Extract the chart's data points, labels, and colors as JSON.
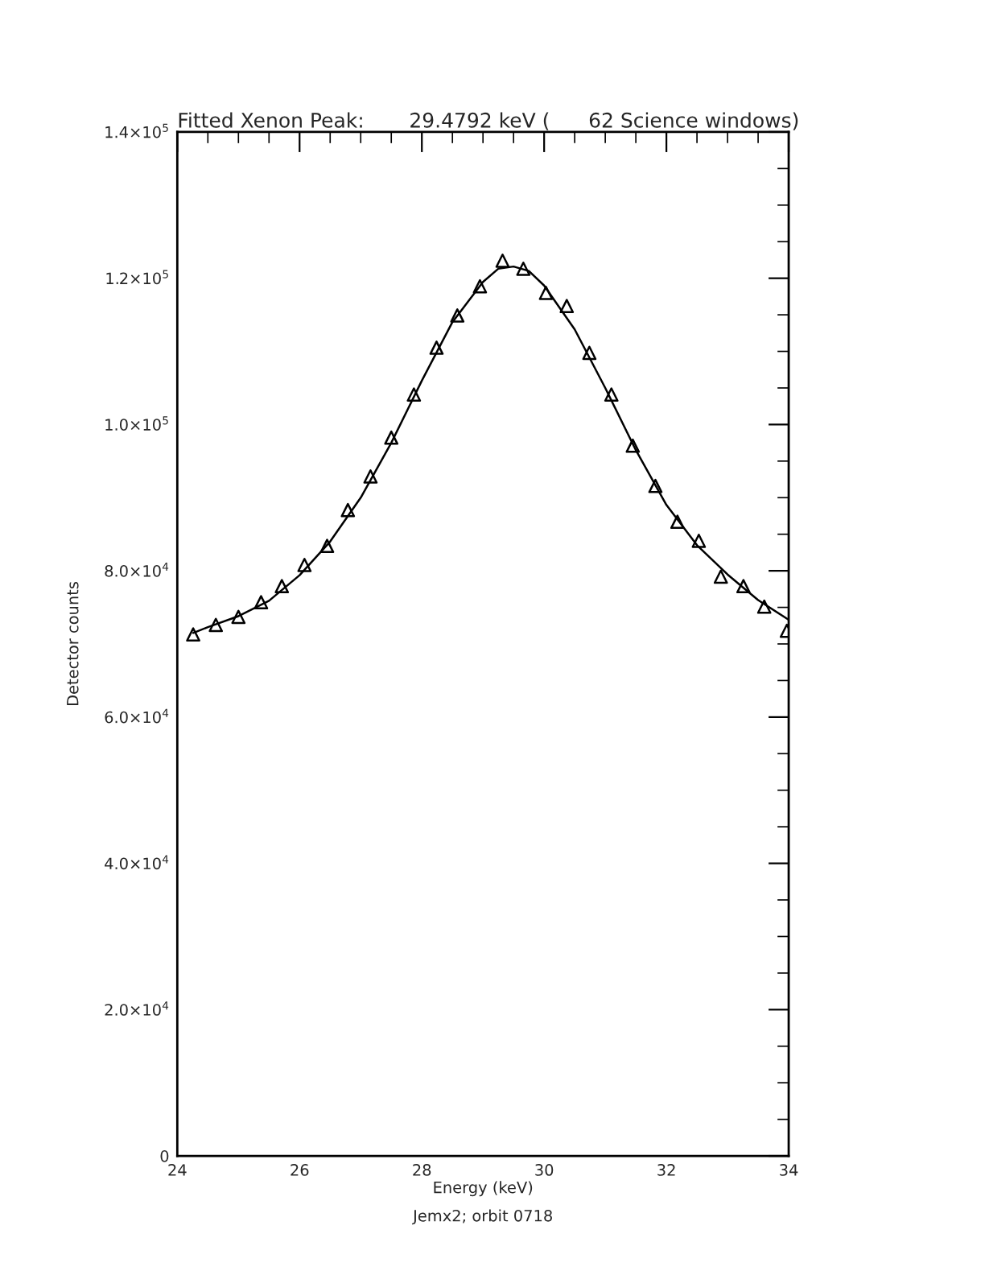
{
  "chart_data": {
    "type": "scatter",
    "title": "Fitted Xenon Peak:       29.4792 keV (      62 Science windows)",
    "xlabel": "Energy (keV)",
    "ylabel": "Detector counts",
    "annotations": [
      "Jemx2; orbit 0718"
    ],
    "xlim": [
      24,
      34
    ],
    "xticks": [
      24,
      26,
      28,
      30,
      32,
      34
    ],
    "ylim": [
      0,
      140000
    ],
    "yticks": [
      {
        "value": 0,
        "label": "0"
      },
      {
        "value": 20000,
        "label": "2.0×10$^{4}$"
      },
      {
        "value": 40000,
        "label": "4.0×10$^{4}$"
      },
      {
        "value": 60000,
        "label": "6.0×10$^{4}$"
      },
      {
        "value": 80000,
        "label": "8.0×10$^{4}$"
      },
      {
        "value": 100000,
        "label": "1.0×10$^{5}$"
      },
      {
        "value": 120000,
        "label": "1.2×10$^{5}$"
      },
      {
        "value": 140000,
        "label": "1.4×10$^{5}$"
      }
    ],
    "grid": false,
    "legend": false,
    "series": [
      {
        "marker": "triangle",
        "color": "#000000",
        "x": [
          24.26,
          24.63,
          25.0,
          25.37,
          25.71,
          26.08,
          26.45,
          26.79,
          27.16,
          27.5,
          27.87,
          28.24,
          28.58,
          28.95,
          29.32,
          29.66,
          30.03,
          30.37,
          30.74,
          31.1,
          31.45,
          31.82,
          32.18,
          32.53,
          32.89,
          33.26,
          33.6,
          33.97
        ],
        "values": [
          71300,
          72600,
          73700,
          75700,
          77900,
          80800,
          83400,
          88300,
          92900,
          98200,
          104100,
          110500,
          114900,
          118900,
          122400,
          121300,
          118000,
          116200,
          109800,
          104100,
          97100,
          91600,
          86700,
          84100,
          79200,
          77900,
          75100,
          71800
        ]
      },
      {
        "type": "line",
        "line_style": "solid",
        "color": "#000000",
        "x": [
          24.26,
          24.5,
          25.0,
          25.5,
          26.0,
          26.5,
          27.0,
          27.5,
          28.0,
          28.5,
          29.0,
          29.25,
          29.5,
          29.75,
          30.0,
          30.5,
          31.0,
          31.5,
          32.0,
          32.5,
          33.0,
          33.5,
          34.0
        ],
        "values": [
          71500,
          72300,
          73800,
          75900,
          79400,
          84000,
          90000,
          97500,
          106000,
          114000,
          119500,
          121300,
          121600,
          121000,
          119000,
          113000,
          105000,
          96500,
          89000,
          83500,
          79500,
          76000,
          73300
        ]
      }
    ]
  }
}
